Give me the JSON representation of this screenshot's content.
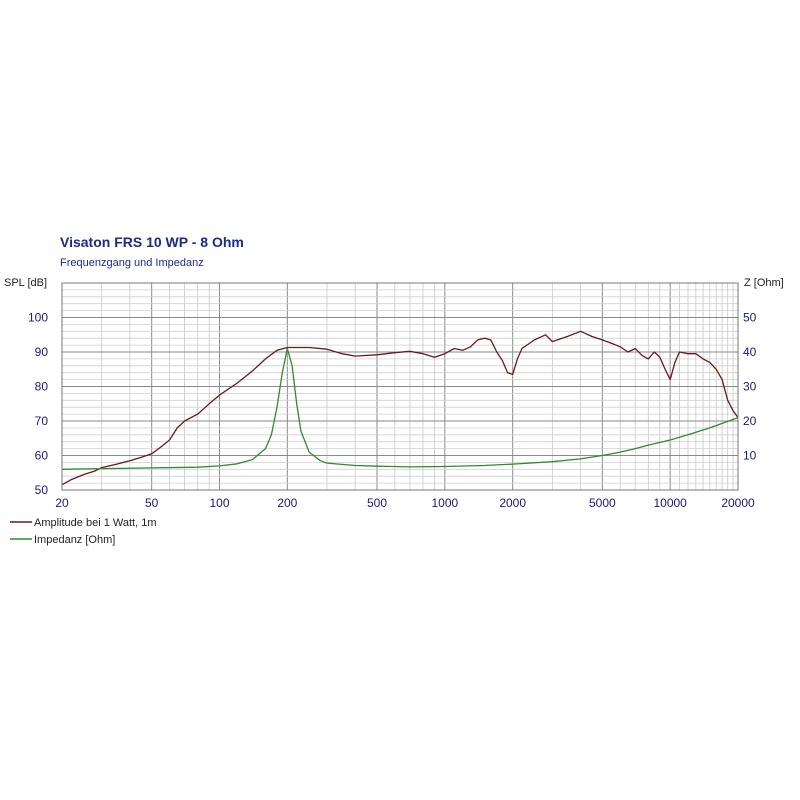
{
  "chart_data": {
    "type": "line",
    "title": "Visaton FRS 10 WP - 8 Ohm",
    "subtitle": "Frequenzgang und Impedanz",
    "xscale": "log",
    "xlim": [
      20,
      20000
    ],
    "x_ticks": [
      20,
      50,
      100,
      200,
      500,
      1000,
      2000,
      5000,
      10000,
      20000
    ],
    "x_tick_labels": [
      "20",
      "50",
      "100",
      "200",
      "500",
      "1000",
      "2000",
      "5000",
      "10000",
      "20000"
    ],
    "left_axis": {
      "label": "SPL [dB]",
      "ylim": [
        50,
        110
      ],
      "ticks": [
        50,
        60,
        70,
        80,
        90,
        100
      ],
      "tick_labels": [
        "50",
        "60",
        "70",
        "80",
        "90",
        "100"
      ]
    },
    "right_axis": {
      "label": "Z [Ohm]",
      "ylim": [
        0,
        60
      ],
      "ticks": [
        10,
        20,
        30,
        40,
        50
      ],
      "tick_labels": [
        "10",
        "20",
        "30",
        "40",
        "50"
      ]
    },
    "grid": true,
    "legend_position": "bottom-left",
    "series": [
      {
        "name": "Amplitude bei 1 Watt, 1m",
        "axis": "left",
        "color": "#6b1a1a",
        "x": [
          20,
          22,
          25,
          28,
          30,
          35,
          40,
          45,
          50,
          55,
          60,
          65,
          70,
          80,
          90,
          100,
          120,
          140,
          160,
          180,
          200,
          250,
          300,
          350,
          400,
          450,
          500,
          600,
          700,
          800,
          900,
          1000,
          1100,
          1200,
          1300,
          1400,
          1500,
          1600,
          1700,
          1800,
          1900,
          2000,
          2100,
          2200,
          2500,
          2800,
          3000,
          3500,
          4000,
          4500,
          5000,
          5500,
          6000,
          6500,
          7000,
          7500,
          8000,
          8500,
          9000,
          9500,
          10000,
          10500,
          11000,
          12000,
          13000,
          14000,
          15000,
          16000,
          17000,
          18000,
          19000,
          20000
        ],
        "values": [
          51.5,
          53,
          54.5,
          55.5,
          56.5,
          57.5,
          58.5,
          59.5,
          60.5,
          62.5,
          64.5,
          68,
          70,
          72,
          75,
          77.5,
          81,
          84.5,
          88,
          90.5,
          91.3,
          91.3,
          90.8,
          89.5,
          88.8,
          89,
          89.2,
          89.8,
          90.2,
          89.5,
          88.5,
          89.5,
          91,
          90.5,
          91.5,
          93.5,
          94,
          93.5,
          90,
          87.5,
          84,
          83.5,
          88,
          91,
          93.5,
          95,
          93,
          94.5,
          96,
          94.5,
          93.5,
          92.5,
          91.5,
          90,
          91,
          89,
          88,
          90,
          88.5,
          85,
          82,
          87,
          90,
          89.5,
          89.5,
          88,
          87,
          85,
          82,
          76,
          73,
          71
        ]
      },
      {
        "name": "Impedanz [Ohm]",
        "axis": "right",
        "color": "#2e8b2e",
        "x": [
          20,
          30,
          50,
          80,
          100,
          120,
          140,
          160,
          170,
          180,
          190,
          200,
          210,
          220,
          230,
          250,
          280,
          300,
          400,
          500,
          700,
          1000,
          1500,
          2000,
          3000,
          4000,
          5000,
          6000,
          7000,
          8000,
          10000,
          12000,
          15000,
          20000
        ],
        "values": [
          6,
          6.2,
          6.4,
          6.6,
          7,
          7.6,
          8.8,
          12,
          16,
          24,
          34,
          41,
          36,
          25,
          17,
          11,
          8.5,
          7.8,
          7.1,
          6.9,
          6.7,
          6.8,
          7.1,
          7.5,
          8.2,
          9,
          10,
          11,
          12,
          13,
          14.5,
          16,
          18,
          21
        ]
      }
    ]
  }
}
